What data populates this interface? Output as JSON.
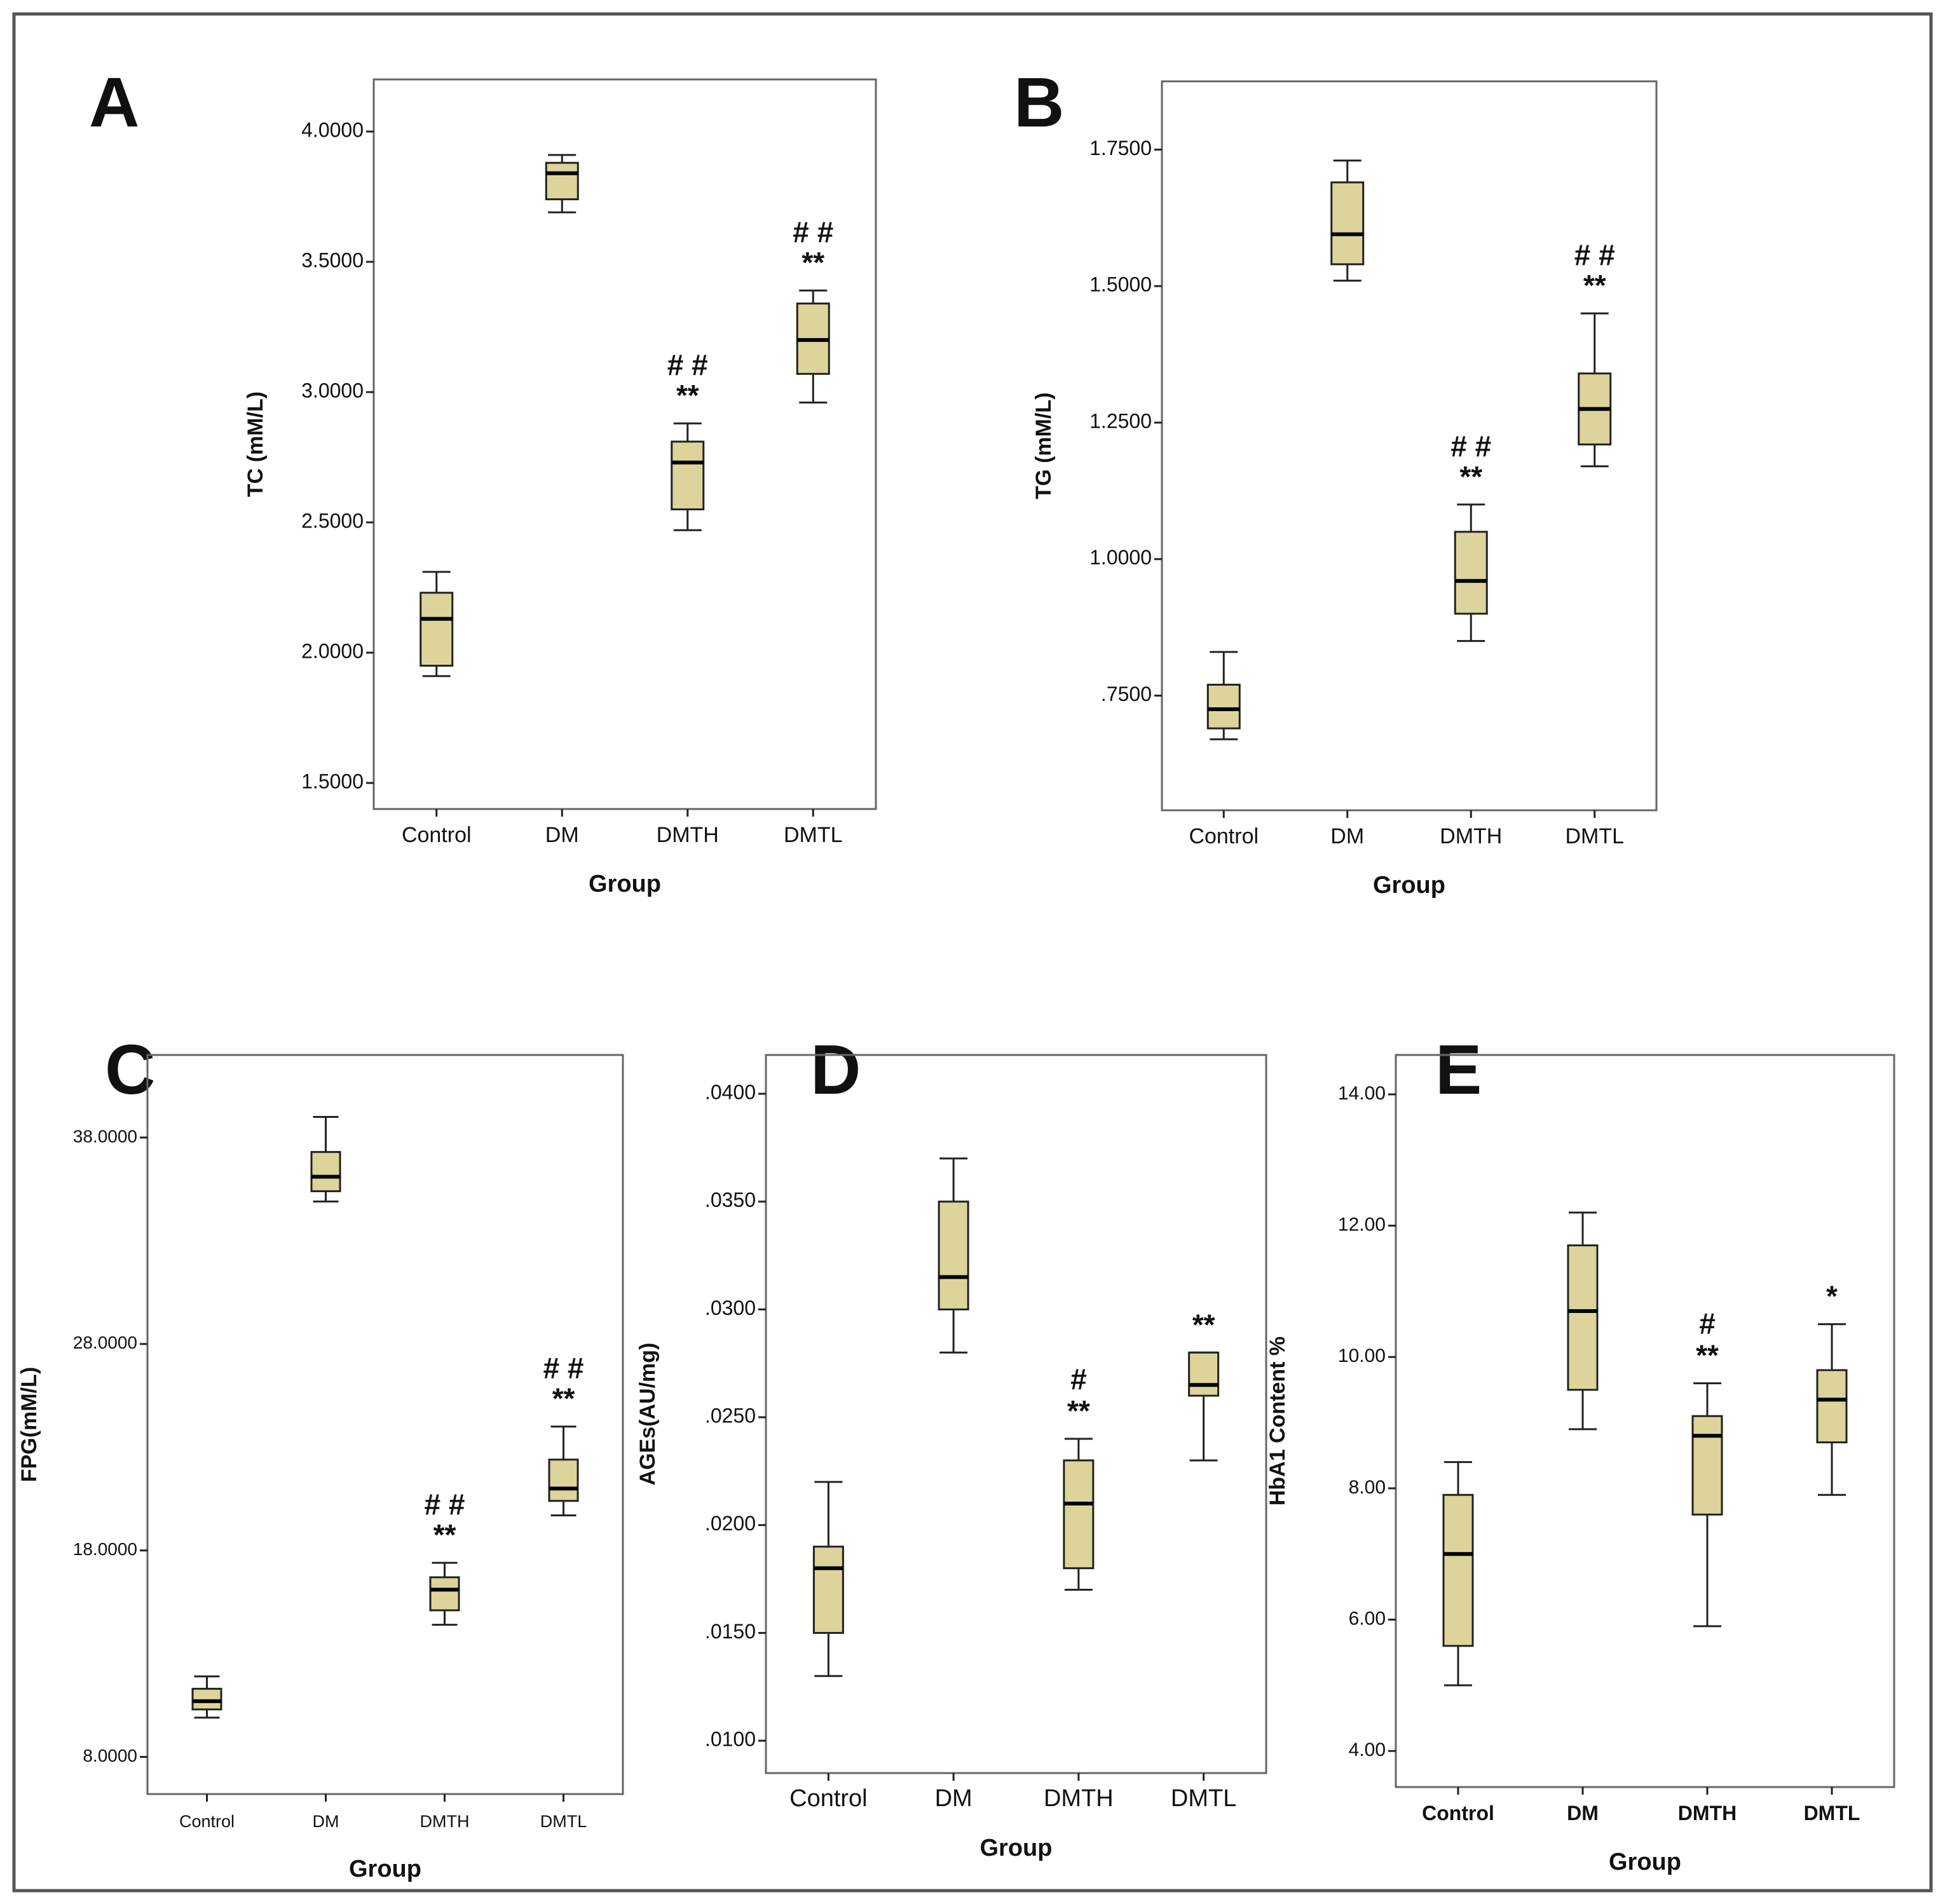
{
  "colors": {
    "box_fill": "#dcd49a",
    "stroke": "#222222",
    "frame": "#666666",
    "text": "#111111"
  },
  "chart_data": [
    {
      "panel": "A",
      "type": "boxplot",
      "xlabel": "Group",
      "ylabel": "TC (mM/L)",
      "categories": [
        "Control",
        "DM",
        "DMTH",
        "DMTL"
      ],
      "ylim": [
        1.4,
        4.2
      ],
      "ticks": [
        1.5,
        2.0,
        2.5,
        3.0,
        3.5,
        4.0
      ],
      "tick_labels": [
        "1.5000",
        "2.0000",
        "2.5000",
        "3.0000",
        "3.5000",
        "4.0000"
      ],
      "boxes": [
        {
          "min": 1.91,
          "q1": 1.95,
          "median": 2.13,
          "q3": 2.23,
          "max": 2.31
        },
        {
          "min": 3.69,
          "q1": 3.74,
          "median": 3.84,
          "q3": 3.88,
          "max": 3.91
        },
        {
          "min": 2.47,
          "q1": 2.55,
          "median": 2.73,
          "q3": 2.81,
          "max": 2.88
        },
        {
          "min": 2.96,
          "q1": 3.07,
          "median": 3.2,
          "q3": 3.34,
          "max": 3.39
        }
      ],
      "annotations": [
        {
          "category": "DMTH",
          "lines": [
            "# #",
            "**"
          ]
        },
        {
          "category": "DMTL",
          "lines": [
            "# #",
            "**"
          ]
        }
      ]
    },
    {
      "panel": "B",
      "type": "boxplot",
      "xlabel": "Group",
      "ylabel": "TG (mM/L)",
      "categories": [
        "Control",
        "DM",
        "DMTH",
        "DMTL"
      ],
      "ylim": [
        0.54,
        1.875
      ],
      "ticks": [
        0.75,
        1.0,
        1.25,
        1.5,
        1.75
      ],
      "tick_labels": [
        ".7500",
        "1.0000",
        "1.2500",
        "1.5000",
        "1.7500"
      ],
      "boxes": [
        {
          "min": 0.67,
          "q1": 0.69,
          "median": 0.725,
          "q3": 0.77,
          "max": 0.83
        },
        {
          "min": 1.51,
          "q1": 1.54,
          "median": 1.595,
          "q3": 1.69,
          "max": 1.73
        },
        {
          "min": 0.85,
          "q1": 0.9,
          "median": 0.96,
          "q3": 1.05,
          "max": 1.1
        },
        {
          "min": 1.17,
          "q1": 1.21,
          "median": 1.275,
          "q3": 1.34,
          "max": 1.45
        }
      ],
      "annotations": [
        {
          "category": "DMTH",
          "lines": [
            "# #",
            "**"
          ]
        },
        {
          "category": "DMTL",
          "lines": [
            "# #",
            "**"
          ]
        }
      ]
    },
    {
      "panel": "C",
      "type": "boxplot",
      "xlabel": "Group",
      "ylabel": "FPG(mM/L)",
      "categories": [
        "Control",
        "DM",
        "DMTH",
        "DMTL"
      ],
      "ylim": [
        6.2,
        42.0
      ],
      "ticks": [
        8.0,
        18.0,
        28.0,
        38.0
      ],
      "tick_labels": [
        "8.0000",
        "18.0000",
        "28.0000",
        "38.0000"
      ],
      "boxes": [
        {
          "min": 9.9,
          "q1": 10.3,
          "median": 10.7,
          "q3": 11.3,
          "max": 11.9
        },
        {
          "min": 34.9,
          "q1": 35.4,
          "median": 36.1,
          "q3": 37.3,
          "max": 39.0
        },
        {
          "min": 14.4,
          "q1": 15.1,
          "median": 16.1,
          "q3": 16.7,
          "max": 17.4
        },
        {
          "min": 19.7,
          "q1": 20.4,
          "median": 21.0,
          "q3": 22.4,
          "max": 24.0
        }
      ],
      "annotations": [
        {
          "category": "DMTH",
          "lines": [
            "# #",
            "**"
          ]
        },
        {
          "category": "DMTL",
          "lines": [
            "# #",
            "**"
          ]
        }
      ]
    },
    {
      "panel": "D",
      "type": "boxplot",
      "xlabel": "Group",
      "ylabel": "AGEs(AU/mg)",
      "categories": [
        "Control",
        "DM",
        "DMTH",
        "DMTL"
      ],
      "ylim": [
        0.0085,
        0.0418
      ],
      "ticks": [
        0.01,
        0.015,
        0.02,
        0.025,
        0.03,
        0.035,
        0.04
      ],
      "tick_labels": [
        ".0100",
        ".0150",
        ".0200",
        ".0250",
        ".0300",
        ".0350",
        ".0400"
      ],
      "boxes": [
        {
          "min": 0.013,
          "q1": 0.015,
          "median": 0.018,
          "q3": 0.019,
          "max": 0.022
        },
        {
          "min": 0.028,
          "q1": 0.03,
          "median": 0.0315,
          "q3": 0.035,
          "max": 0.037
        },
        {
          "min": 0.017,
          "q1": 0.018,
          "median": 0.021,
          "q3": 0.023,
          "max": 0.024
        },
        {
          "min": 0.023,
          "q1": 0.026,
          "median": 0.0265,
          "q3": 0.028,
          "max": 0.028
        }
      ],
      "annotations": [
        {
          "category": "DMTH",
          "lines": [
            "#",
            "**"
          ]
        },
        {
          "category": "DMTL",
          "lines": [
            "**"
          ]
        }
      ]
    },
    {
      "panel": "E",
      "type": "boxplot",
      "xlabel": "Group",
      "ylabel": "HbA1 Content %",
      "categories": [
        "Control",
        "DM",
        "DMTH",
        "DMTL"
      ],
      "ylim": [
        3.45,
        14.6
      ],
      "ticks": [
        4.0,
        6.0,
        8.0,
        10.0,
        12.0,
        14.0
      ],
      "tick_labels": [
        "4.00",
        "6.00",
        "8.00",
        "10.00",
        "12.00",
        "14.00"
      ],
      "boxes": [
        {
          "min": 5.0,
          "q1": 5.6,
          "median": 7.0,
          "q3": 7.9,
          "max": 8.4
        },
        {
          "min": 8.9,
          "q1": 9.5,
          "median": 10.7,
          "q3": 11.7,
          "max": 12.2
        },
        {
          "min": 5.9,
          "q1": 7.6,
          "median": 8.8,
          "q3": 9.1,
          "max": 9.6
        },
        {
          "min": 7.9,
          "q1": 8.7,
          "median": 9.35,
          "q3": 9.8,
          "max": 10.5
        }
      ],
      "annotations": [
        {
          "category": "DMTH",
          "lines": [
            "#",
            "**"
          ]
        },
        {
          "category": "DMTL",
          "lines": [
            "*"
          ]
        }
      ]
    }
  ]
}
